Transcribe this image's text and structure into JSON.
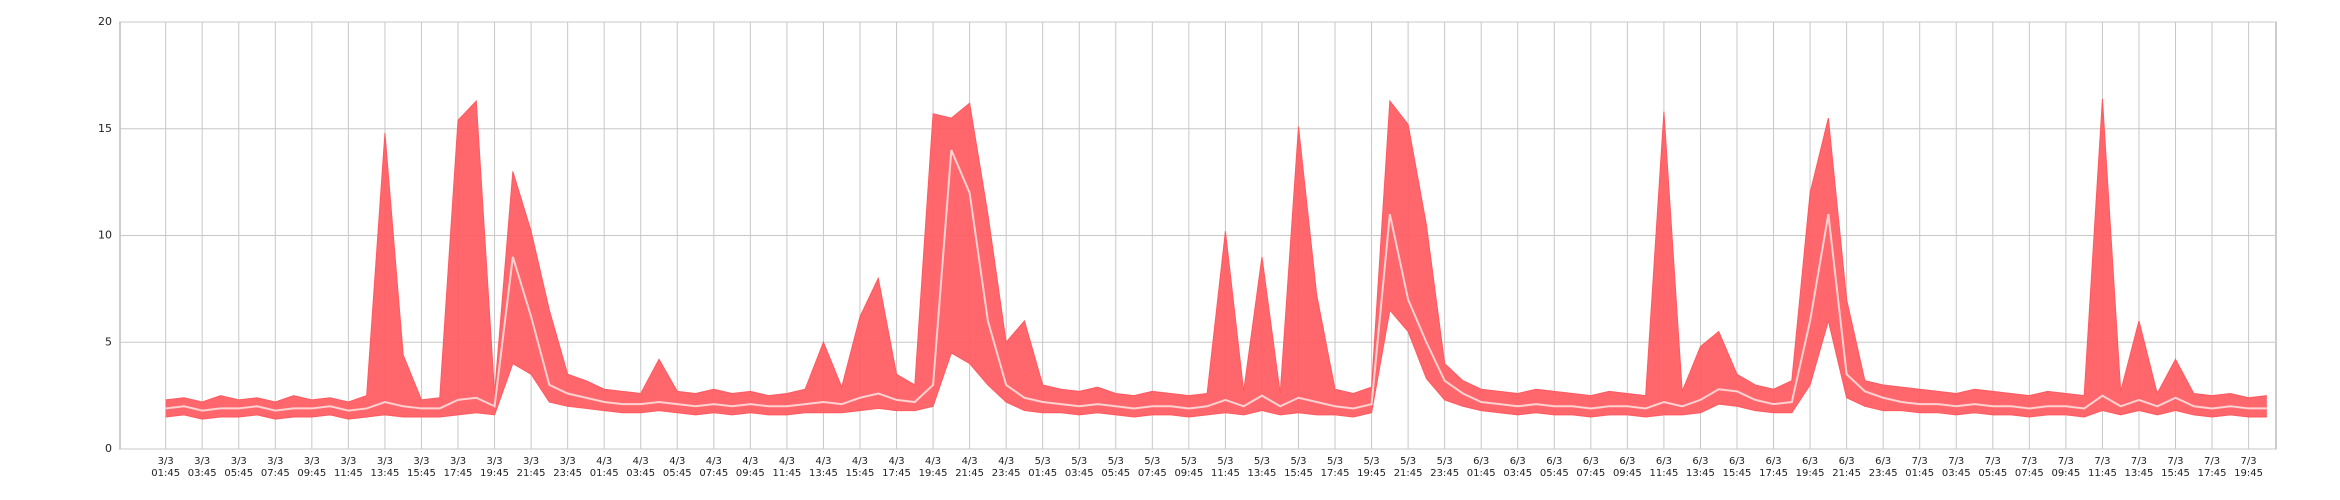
{
  "chart_data": {
    "type": "band",
    "categories": [
      "3/3\n01:45",
      null,
      "3/3\n03:45",
      null,
      "3/3\n05:45",
      null,
      "3/3\n07:45",
      null,
      "3/3\n09:45",
      null,
      "3/3\n11:45",
      null,
      "3/3\n13:45",
      null,
      "3/3\n15:45",
      null,
      "3/3\n17:45",
      null,
      "3/3\n19:45",
      null,
      "3/3\n21:45",
      null,
      "3/3\n23:45",
      null,
      "4/3\n01:45",
      null,
      "4/3\n03:45",
      null,
      "4/3\n05:45",
      null,
      "4/3\n07:45",
      null,
      "4/3\n09:45",
      null,
      "4/3\n11:45",
      null,
      "4/3\n13:45",
      null,
      "4/3\n15:45",
      null,
      "4/3\n17:45",
      null,
      "4/3\n19:45",
      null,
      "4/3\n21:45",
      null,
      "4/3\n23:45",
      null,
      "5/3\n01:45",
      null,
      "5/3\n03:45",
      null,
      "5/3\n05:45",
      null,
      "5/3\n07:45",
      null,
      "5/3\n09:45",
      null,
      "5/3\n11:45",
      null,
      "5/3\n13:45",
      null,
      "5/3\n15:45",
      null,
      "5/3\n17:45",
      null,
      "5/3\n19:45",
      null,
      "5/3\n21:45",
      null,
      "5/3\n23:45",
      null,
      "6/3\n01:45",
      null,
      "6/3\n03:45",
      null,
      "6/3\n05:45",
      null,
      "6/3\n07:45",
      null,
      "6/3\n09:45",
      null,
      "6/3\n11:45",
      null,
      "6/3\n13:45",
      null,
      "6/3\n15:45",
      null,
      "6/3\n17:45",
      null,
      "6/3\n19:45",
      null,
      "6/3\n21:45",
      null,
      "6/3\n23:45",
      null,
      "7/3\n01:45",
      null,
      "7/3\n03:45",
      null,
      "7/3\n05:45",
      null,
      "7/3\n07:45",
      null,
      "7/3\n09:45",
      null,
      "7/3\n11:45",
      null,
      "7/3\n13:45",
      null,
      "7/3\n15:45",
      null,
      "7/3\n17:45",
      null,
      "7/3\n19:45",
      null
    ],
    "series": [
      {
        "color": "#ff5a60",
        "values": [
          2.3,
          2.4,
          2.2,
          2.5,
          2.3,
          2.4,
          2.2,
          2.5,
          2.3,
          2.4,
          2.2,
          2.5,
          14.8,
          4.4,
          2.3,
          2.4,
          15.4,
          16.3,
          2.6,
          13,
          10.2,
          6.5,
          3.5,
          3.2,
          2.8,
          2.7,
          2.6,
          4.2,
          2.7,
          2.6,
          2.8,
          2.6,
          2.7,
          2.5,
          2.6,
          2.8,
          5,
          2.9,
          6.2,
          8,
          3.5,
          3,
          15.7,
          15.5,
          16.2,
          11,
          5,
          6,
          3,
          2.8,
          2.7,
          2.9,
          2.6,
          2.5,
          2.7,
          2.6,
          2.5,
          2.6,
          10.2,
          2.7,
          9,
          2.6,
          15.1,
          7.2,
          2.8,
          2.6,
          2.9,
          16.3,
          15.2,
          10.5,
          4,
          3.2,
          2.8,
          2.7,
          2.6,
          2.8,
          2.7,
          2.6,
          2.5,
          2.7,
          2.6,
          2.5,
          15.8,
          2.7,
          4.8,
          5.5,
          3.5,
          3,
          2.8,
          3.2,
          12,
          15.5,
          7,
          3.2,
          3,
          2.9,
          2.8,
          2.7,
          2.6,
          2.8,
          2.7,
          2.6,
          2.5,
          2.7,
          2.6,
          2.5,
          16.4,
          2.7,
          6,
          2.6,
          4.2,
          2.6,
          2.5,
          2.6,
          2.4,
          2.5
        ]
      },
      {
        "color": "#ffd2d2",
        "values": [
          1.9,
          2.0,
          1.8,
          1.9,
          1.9,
          2.0,
          1.8,
          1.9,
          1.9,
          2.0,
          1.8,
          1.9,
          2.2,
          2.0,
          1.9,
          1.9,
          2.3,
          2.4,
          2.0,
          9,
          6.2,
          3,
          2.6,
          2.4,
          2.2,
          2.1,
          2.1,
          2.2,
          2.1,
          2.0,
          2.1,
          2.0,
          2.1,
          2.0,
          2.0,
          2.1,
          2.2,
          2.1,
          2.4,
          2.6,
          2.3,
          2.2,
          3,
          14,
          12,
          6,
          3,
          2.4,
          2.2,
          2.1,
          2.0,
          2.1,
          2.0,
          1.9,
          2.0,
          2.0,
          1.9,
          2.0,
          2.3,
          2.0,
          2.5,
          2.0,
          2.4,
          2.2,
          2.0,
          1.9,
          2.1,
          11,
          7,
          5,
          3.2,
          2.6,
          2.2,
          2.1,
          2.0,
          2.1,
          2.0,
          2.0,
          1.9,
          2.0,
          2.0,
          1.9,
          2.2,
          2.0,
          2.3,
          2.8,
          2.7,
          2.3,
          2.1,
          2.2,
          6,
          11,
          3.5,
          2.7,
          2.4,
          2.2,
          2.1,
          2.1,
          2.0,
          2.1,
          2.0,
          2.0,
          1.9,
          2.0,
          2.0,
          1.9,
          2.5,
          2.0,
          2.3,
          2.0,
          2.4,
          2.0,
          1.9,
          2.0,
          1.9,
          1.9
        ]
      },
      {
        "color": "#ff5a60",
        "values": [
          1.5,
          1.6,
          1.4,
          1.5,
          1.5,
          1.6,
          1.4,
          1.5,
          1.5,
          1.6,
          1.4,
          1.5,
          1.6,
          1.5,
          1.5,
          1.5,
          1.6,
          1.7,
          1.6,
          4,
          3.5,
          2.2,
          2,
          1.9,
          1.8,
          1.7,
          1.7,
          1.8,
          1.7,
          1.6,
          1.7,
          1.6,
          1.7,
          1.6,
          1.6,
          1.7,
          1.7,
          1.7,
          1.8,
          1.9,
          1.8,
          1.8,
          2,
          4.5,
          4,
          3,
          2.2,
          1.8,
          1.7,
          1.7,
          1.6,
          1.7,
          1.6,
          1.5,
          1.6,
          1.6,
          1.5,
          1.6,
          1.7,
          1.6,
          1.8,
          1.6,
          1.7,
          1.6,
          1.6,
          1.5,
          1.7,
          6.5,
          5.5,
          3.3,
          2.3,
          2,
          1.8,
          1.7,
          1.6,
          1.7,
          1.6,
          1.6,
          1.5,
          1.6,
          1.6,
          1.5,
          1.6,
          1.6,
          1.7,
          2.1,
          2,
          1.8,
          1.7,
          1.7,
          3,
          6,
          2.4,
          2,
          1.8,
          1.8,
          1.7,
          1.7,
          1.6,
          1.7,
          1.6,
          1.6,
          1.5,
          1.6,
          1.6,
          1.5,
          1.8,
          1.6,
          1.8,
          1.6,
          1.8,
          1.6,
          1.5,
          1.6,
          1.5,
          1.5
        ]
      }
    ],
    "ylim": [
      0,
      20
    ],
    "yticks": [
      0,
      5,
      10,
      15,
      20
    ],
    "grid": true
  }
}
